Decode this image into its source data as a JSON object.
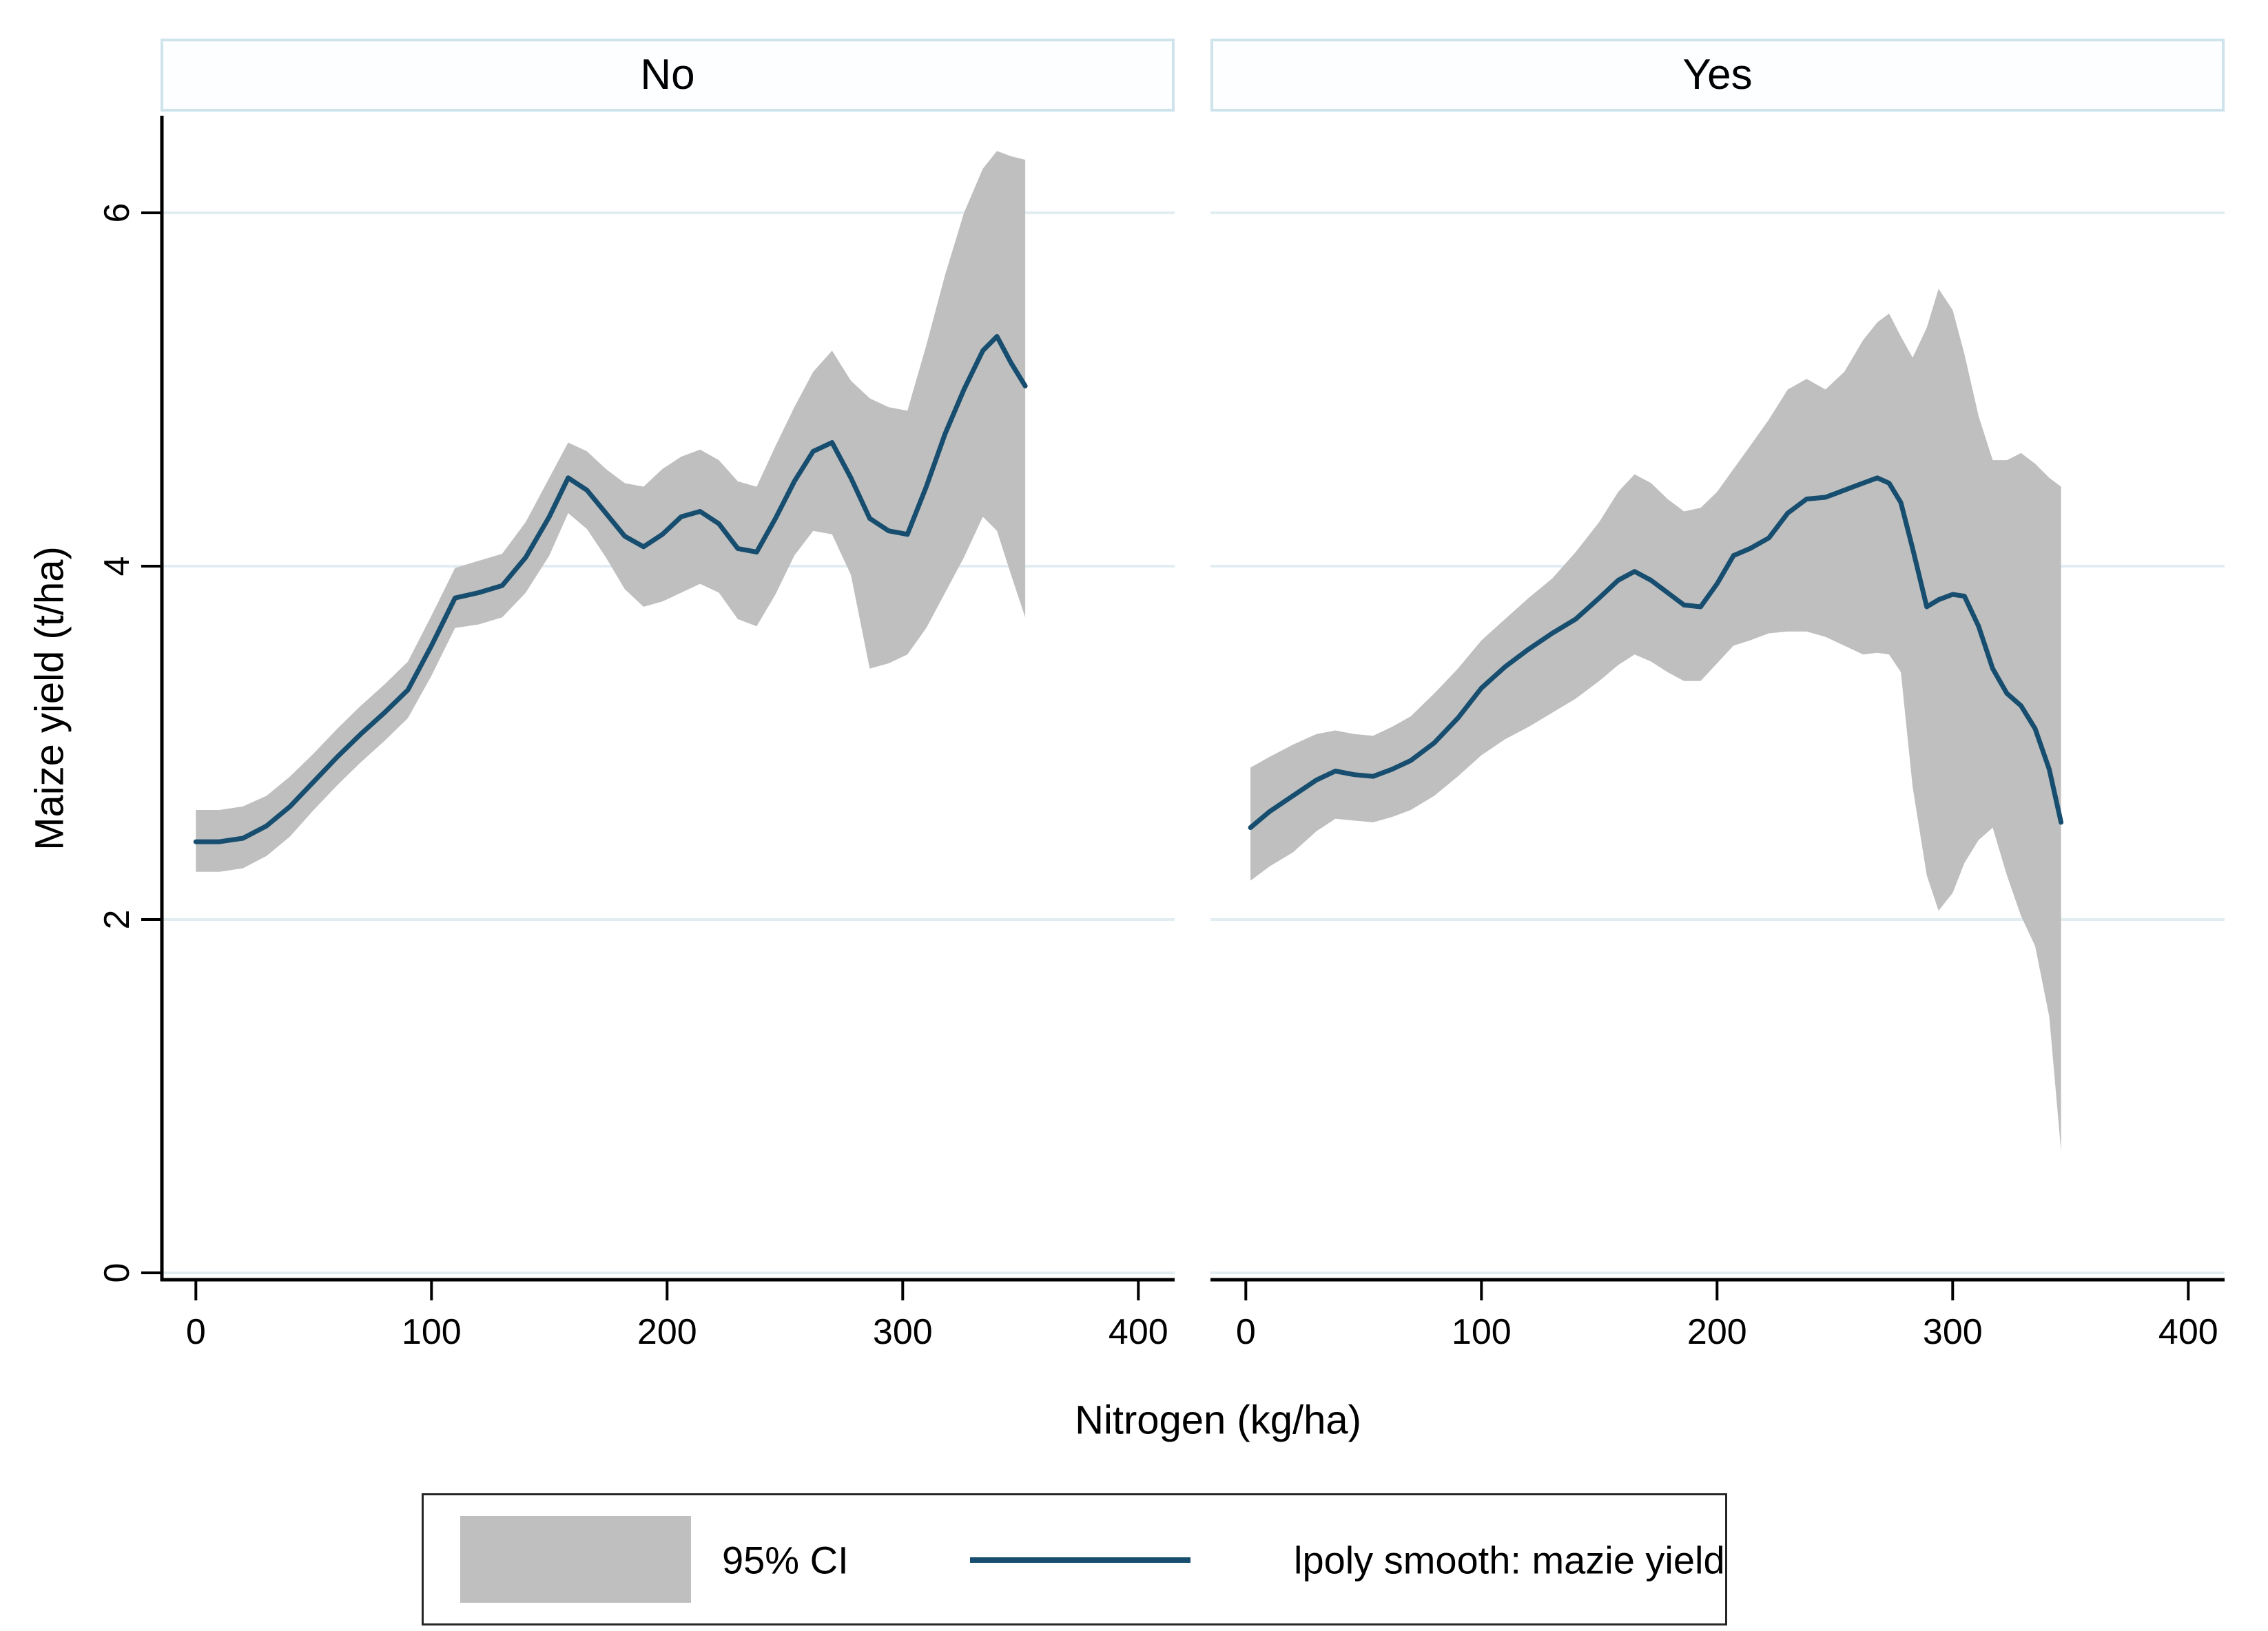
{
  "chart_data": {
    "type": "area",
    "description": "Two-panel (faceted) Stata lpoly smooth plot of maize yield vs nitrogen with 95% CI bands",
    "xlabel": "Nitrogen (kg/ha)",
    "ylabel": "Maize yield (t/ha)",
    "x_ticks": [
      0,
      100,
      200,
      300,
      400
    ],
    "y_ticks": [
      0,
      2,
      4,
      6
    ],
    "xlim": [
      -15,
      415
    ],
    "ylim": [
      -0.05,
      6.55
    ],
    "grid": true,
    "legend_position": "bottom",
    "legend": [
      {
        "swatch": "area",
        "label": "95% CI"
      },
      {
        "swatch": "line",
        "label": "lpoly smooth: mazie yield"
      }
    ],
    "colors": {
      "line": "#174e6f",
      "band": "#bfbfbf",
      "grid": "#e2edf2",
      "axis": "#000000",
      "strip_border": "#cfe3ec",
      "legend_border": "#262626"
    },
    "facets": [
      {
        "label": "No",
        "x": [
          0,
          10,
          20,
          30,
          40,
          50,
          60,
          70,
          80,
          90,
          100,
          110,
          120,
          130,
          140,
          150,
          158,
          166,
          174,
          182,
          190,
          198,
          206,
          214,
          222,
          230,
          238,
          246,
          254,
          262,
          270,
          278,
          286,
          294,
          302,
          310,
          318,
          326,
          334,
          340,
          346,
          352
        ],
        "smooth": [
          2.44,
          2.44,
          2.46,
          2.53,
          2.64,
          2.78,
          2.92,
          3.05,
          3.17,
          3.3,
          3.55,
          3.82,
          3.85,
          3.89,
          4.05,
          4.28,
          4.5,
          4.43,
          4.3,
          4.17,
          4.11,
          4.18,
          4.28,
          4.31,
          4.24,
          4.1,
          4.08,
          4.27,
          4.48,
          4.65,
          4.7,
          4.5,
          4.27,
          4.2,
          4.18,
          4.45,
          4.75,
          5.0,
          5.22,
          5.3,
          5.15,
          5.02
        ],
        "upper": [
          2.62,
          2.62,
          2.64,
          2.7,
          2.81,
          2.94,
          3.08,
          3.21,
          3.33,
          3.46,
          3.72,
          3.99,
          4.03,
          4.07,
          4.25,
          4.5,
          4.7,
          4.65,
          4.55,
          4.47,
          4.45,
          4.55,
          4.62,
          4.66,
          4.6,
          4.48,
          4.45,
          4.68,
          4.9,
          5.1,
          5.22,
          5.05,
          4.95,
          4.9,
          4.88,
          5.25,
          5.65,
          6.0,
          6.25,
          6.35,
          6.32,
          6.3
        ],
        "lower": [
          2.27,
          2.27,
          2.29,
          2.36,
          2.47,
          2.62,
          2.76,
          2.89,
          3.01,
          3.14,
          3.38,
          3.65,
          3.67,
          3.71,
          3.85,
          4.06,
          4.3,
          4.21,
          4.05,
          3.87,
          3.77,
          3.8,
          3.85,
          3.9,
          3.85,
          3.7,
          3.66,
          3.84,
          4.06,
          4.2,
          4.18,
          3.95,
          3.42,
          3.45,
          3.5,
          3.65,
          3.85,
          4.05,
          4.28,
          4.2,
          3.95,
          3.71
        ]
      },
      {
        "label": "Yes",
        "x": [
          2,
          10,
          20,
          30,
          38,
          46,
          54,
          62,
          70,
          80,
          90,
          100,
          110,
          120,
          130,
          140,
          150,
          158,
          165,
          172,
          179,
          186,
          193,
          200,
          207,
          214,
          222,
          230,
          238,
          246,
          254,
          262,
          268,
          273,
          278,
          283,
          289,
          294,
          300,
          305,
          311,
          317,
          323,
          329,
          335,
          341,
          346
        ],
        "smooth": [
          2.52,
          2.61,
          2.7,
          2.79,
          2.84,
          2.82,
          2.81,
          2.85,
          2.9,
          3.0,
          3.14,
          3.31,
          3.43,
          3.53,
          3.62,
          3.7,
          3.82,
          3.92,
          3.97,
          3.92,
          3.85,
          3.78,
          3.77,
          3.9,
          4.06,
          4.1,
          4.16,
          4.3,
          4.38,
          4.39,
          4.43,
          4.47,
          4.5,
          4.47,
          4.36,
          4.1,
          3.77,
          3.81,
          3.84,
          3.83,
          3.66,
          3.42,
          3.28,
          3.21,
          3.08,
          2.85,
          2.55
        ],
        "upper": [
          2.86,
          2.92,
          2.99,
          3.05,
          3.07,
          3.05,
          3.04,
          3.09,
          3.15,
          3.28,
          3.42,
          3.58,
          3.7,
          3.82,
          3.93,
          4.08,
          4.25,
          4.42,
          4.52,
          4.47,
          4.38,
          4.31,
          4.33,
          4.42,
          4.55,
          4.68,
          4.83,
          5.0,
          5.06,
          5.0,
          5.1,
          5.28,
          5.38,
          5.43,
          5.3,
          5.18,
          5.35,
          5.57,
          5.45,
          5.2,
          4.85,
          4.6,
          4.6,
          4.64,
          4.58,
          4.5,
          4.45
        ],
        "lower": [
          2.22,
          2.3,
          2.38,
          2.5,
          2.57,
          2.56,
          2.55,
          2.58,
          2.62,
          2.7,
          2.81,
          2.93,
          3.02,
          3.09,
          3.17,
          3.25,
          3.35,
          3.44,
          3.5,
          3.46,
          3.4,
          3.35,
          3.35,
          3.45,
          3.55,
          3.58,
          3.62,
          3.63,
          3.63,
          3.6,
          3.55,
          3.5,
          3.51,
          3.5,
          3.4,
          2.75,
          2.25,
          2.05,
          2.15,
          2.32,
          2.45,
          2.52,
          2.25,
          2.02,
          1.85,
          1.45,
          0.69
        ]
      }
    ]
  }
}
